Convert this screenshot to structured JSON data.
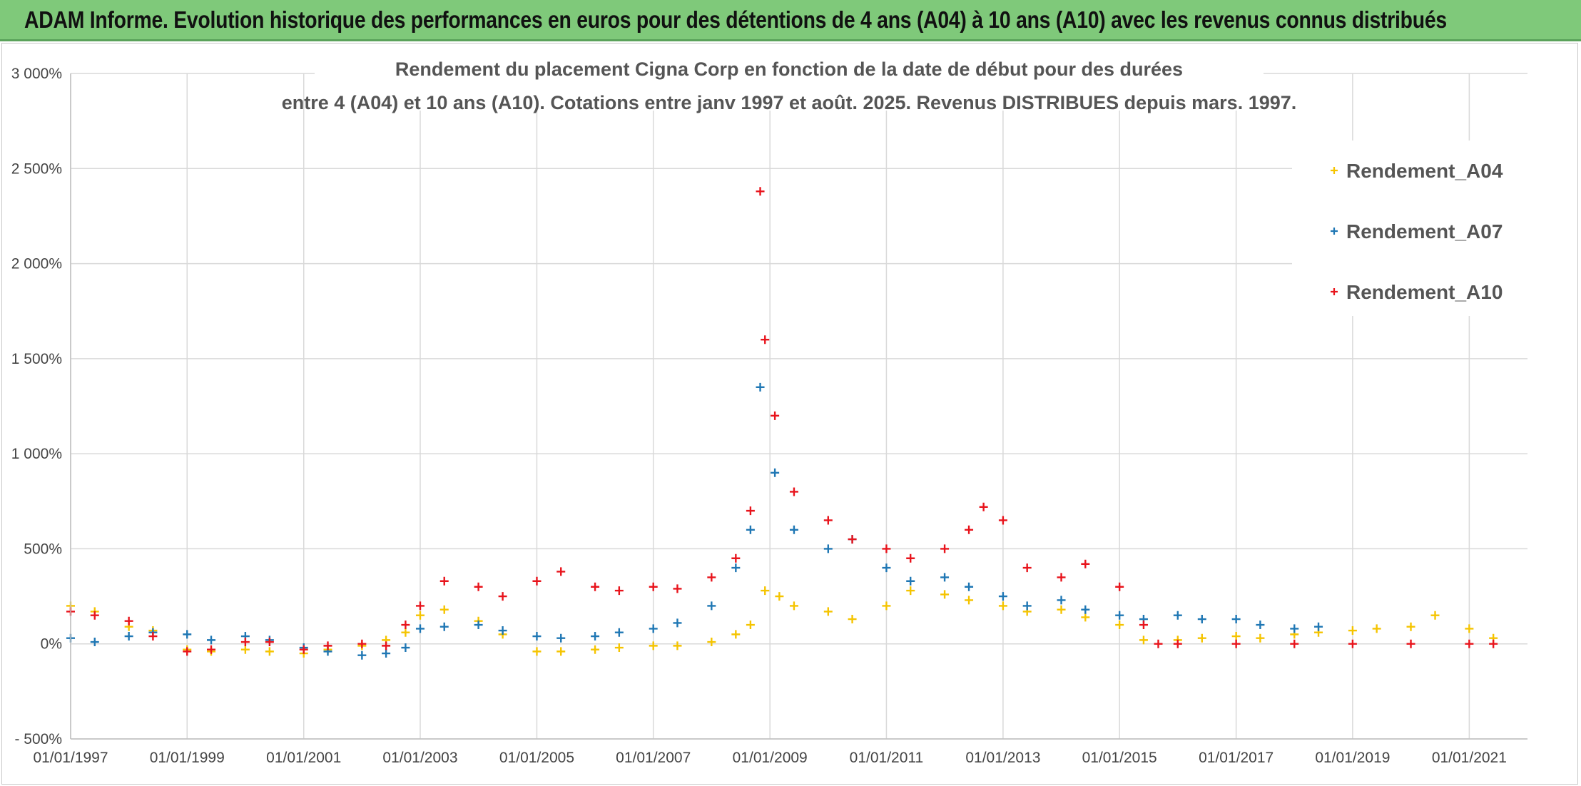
{
  "banner": {
    "title": "ADAM Informe. Evolution historique des performances en euros pour des détentions de 4 ans (A04) à 10 ans (A10) avec les revenus connus distribués",
    "color": "#7fc97a"
  },
  "chart_data": {
    "type": "scatter",
    "title_line1": "Rendement du placement Cigna Corp en fonction de la date de début pour des durées",
    "title_line2": "entre 4 (A04) et 10 ans (A10). Cotations entre janv 1997 et août. 2025. Revenus DISTRIBUES depuis mars. 1997.",
    "ylim": [
      -500,
      3000
    ],
    "y_ticks": [
      {
        "value": 3000,
        "label": "3 000%"
      },
      {
        "value": 2500,
        "label": "2 500%"
      },
      {
        "value": 2000,
        "label": "2 000%"
      },
      {
        "value": 1500,
        "label": "1 500%"
      },
      {
        "value": 1000,
        "label": "1 000%"
      },
      {
        "value": 500,
        "label": "500%"
      },
      {
        "value": 0,
        "label": "0%"
      },
      {
        "value": -500,
        "label": "- 500%"
      }
    ],
    "xlim": [
      "1997-01-01",
      "2022-01-01"
    ],
    "x_ticks": [
      "01/01/1997",
      "01/01/1999",
      "01/01/2001",
      "01/01/2003",
      "01/01/2005",
      "01/01/2007",
      "01/01/2009",
      "01/01/2011",
      "01/01/2013",
      "01/01/2015",
      "01/01/2017",
      "01/01/2019",
      "01/01/2021"
    ],
    "grid": true,
    "legend_position": "top-right",
    "marker": "+",
    "series": [
      {
        "name": "Rendement_A04",
        "color": "#f5c400",
        "points": [
          [
            "1997-01-01",
            200
          ],
          [
            "1997-06-01",
            170
          ],
          [
            "1998-01-01",
            90
          ],
          [
            "1998-06-01",
            70
          ],
          [
            "1999-01-01",
            -30
          ],
          [
            "1999-06-01",
            -40
          ],
          [
            "2000-01-01",
            -30
          ],
          [
            "2000-06-01",
            -40
          ],
          [
            "2001-01-01",
            -50
          ],
          [
            "2001-06-01",
            -30
          ],
          [
            "2002-01-01",
            -10
          ],
          [
            "2002-06-01",
            20
          ],
          [
            "2002-10-01",
            60
          ],
          [
            "2003-01-01",
            150
          ],
          [
            "2003-06-01",
            180
          ],
          [
            "2004-01-01",
            120
          ],
          [
            "2004-06-01",
            50
          ],
          [
            "2005-01-01",
            -40
          ],
          [
            "2005-06-01",
            -40
          ],
          [
            "2006-01-01",
            -30
          ],
          [
            "2006-06-01",
            -20
          ],
          [
            "2007-01-01",
            -10
          ],
          [
            "2007-06-01",
            -10
          ],
          [
            "2008-01-01",
            10
          ],
          [
            "2008-06-01",
            50
          ],
          [
            "2008-09-01",
            100
          ],
          [
            "2008-12-01",
            280
          ],
          [
            "2009-03-01",
            250
          ],
          [
            "2009-06-01",
            200
          ],
          [
            "2010-01-01",
            170
          ],
          [
            "2010-06-01",
            130
          ],
          [
            "2011-01-01",
            200
          ],
          [
            "2011-06-01",
            280
          ],
          [
            "2012-01-01",
            260
          ],
          [
            "2012-06-01",
            230
          ],
          [
            "2013-01-01",
            200
          ],
          [
            "2013-06-01",
            170
          ],
          [
            "2014-01-01",
            180
          ],
          [
            "2014-06-01",
            140
          ],
          [
            "2015-01-01",
            100
          ],
          [
            "2015-06-01",
            20
          ],
          [
            "2016-01-01",
            20
          ],
          [
            "2016-06-01",
            30
          ],
          [
            "2017-01-01",
            40
          ],
          [
            "2017-06-01",
            30
          ],
          [
            "2018-01-01",
            50
          ],
          [
            "2018-06-01",
            60
          ],
          [
            "2019-01-01",
            70
          ],
          [
            "2019-06-01",
            80
          ],
          [
            "2020-01-01",
            90
          ],
          [
            "2020-06-01",
            150
          ],
          [
            "2021-01-01",
            80
          ],
          [
            "2021-06-01",
            30
          ]
        ]
      },
      {
        "name": "Rendement_A07",
        "color": "#1f77b4",
        "points": [
          [
            "1997-01-01",
            30
          ],
          [
            "1997-06-01",
            10
          ],
          [
            "1998-01-01",
            40
          ],
          [
            "1998-06-01",
            60
          ],
          [
            "1999-01-01",
            50
          ],
          [
            "1999-06-01",
            20
          ],
          [
            "2000-01-01",
            40
          ],
          [
            "2000-06-01",
            20
          ],
          [
            "2001-01-01",
            -20
          ],
          [
            "2001-06-01",
            -40
          ],
          [
            "2002-01-01",
            -60
          ],
          [
            "2002-06-01",
            -50
          ],
          [
            "2002-10-01",
            -20
          ],
          [
            "2003-01-01",
            80
          ],
          [
            "2003-06-01",
            90
          ],
          [
            "2004-01-01",
            100
          ],
          [
            "2004-06-01",
            70
          ],
          [
            "2005-01-01",
            40
          ],
          [
            "2005-06-01",
            30
          ],
          [
            "2006-01-01",
            40
          ],
          [
            "2006-06-01",
            60
          ],
          [
            "2007-01-01",
            80
          ],
          [
            "2007-06-01",
            110
          ],
          [
            "2008-01-01",
            200
          ],
          [
            "2008-06-01",
            400
          ],
          [
            "2008-09-01",
            600
          ],
          [
            "2008-11-01",
            1350
          ],
          [
            "2009-02-01",
            900
          ],
          [
            "2009-06-01",
            600
          ],
          [
            "2010-01-01",
            500
          ],
          [
            "2010-06-01",
            550
          ],
          [
            "2011-01-01",
            400
          ],
          [
            "2011-06-01",
            330
          ],
          [
            "2012-01-01",
            350
          ],
          [
            "2012-06-01",
            300
          ],
          [
            "2013-01-01",
            250
          ],
          [
            "2013-06-01",
            200
          ],
          [
            "2014-01-01",
            230
          ],
          [
            "2014-06-01",
            180
          ],
          [
            "2015-01-01",
            150
          ],
          [
            "2015-06-01",
            130
          ],
          [
            "2016-01-01",
            150
          ],
          [
            "2016-06-01",
            130
          ],
          [
            "2017-01-01",
            130
          ],
          [
            "2017-06-01",
            100
          ],
          [
            "2018-01-01",
            80
          ],
          [
            "2018-06-01",
            90
          ]
        ]
      },
      {
        "name": "Rendement_A10",
        "color": "#e8141c",
        "points": [
          [
            "1997-01-01",
            170
          ],
          [
            "1997-06-01",
            150
          ],
          [
            "1998-01-01",
            120
          ],
          [
            "1998-06-01",
            40
          ],
          [
            "1999-01-01",
            -40
          ],
          [
            "1999-06-01",
            -30
          ],
          [
            "2000-01-01",
            10
          ],
          [
            "2000-06-01",
            10
          ],
          [
            "2001-01-01",
            -30
          ],
          [
            "2001-06-01",
            -10
          ],
          [
            "2002-01-01",
            0
          ],
          [
            "2002-06-01",
            -10
          ],
          [
            "2002-10-01",
            100
          ],
          [
            "2003-01-01",
            200
          ],
          [
            "2003-06-01",
            330
          ],
          [
            "2004-01-01",
            300
          ],
          [
            "2004-06-01",
            250
          ],
          [
            "2005-01-01",
            330
          ],
          [
            "2005-06-01",
            380
          ],
          [
            "2006-01-01",
            300
          ],
          [
            "2006-06-01",
            280
          ],
          [
            "2007-01-01",
            300
          ],
          [
            "2007-06-01",
            290
          ],
          [
            "2008-01-01",
            350
          ],
          [
            "2008-06-01",
            450
          ],
          [
            "2008-09-01",
            700
          ],
          [
            "2008-11-01",
            2380
          ],
          [
            "2008-12-01",
            1600
          ],
          [
            "2009-02-01",
            1200
          ],
          [
            "2009-06-01",
            800
          ],
          [
            "2010-01-01",
            650
          ],
          [
            "2010-06-01",
            550
          ],
          [
            "2011-01-01",
            500
          ],
          [
            "2011-06-01",
            450
          ],
          [
            "2012-01-01",
            500
          ],
          [
            "2012-06-01",
            600
          ],
          [
            "2012-09-01",
            720
          ],
          [
            "2013-01-01",
            650
          ],
          [
            "2013-06-01",
            400
          ],
          [
            "2014-01-01",
            350
          ],
          [
            "2014-06-01",
            420
          ],
          [
            "2015-01-01",
            300
          ],
          [
            "2015-06-01",
            100
          ],
          [
            "2015-09-01",
            0
          ],
          [
            "2016-01-01",
            0
          ],
          [
            "2017-01-01",
            0
          ],
          [
            "2018-01-01",
            0
          ],
          [
            "2019-01-01",
            0
          ],
          [
            "2020-01-01",
            0
          ],
          [
            "2021-01-01",
            0
          ],
          [
            "2021-06-01",
            0
          ]
        ]
      }
    ]
  }
}
